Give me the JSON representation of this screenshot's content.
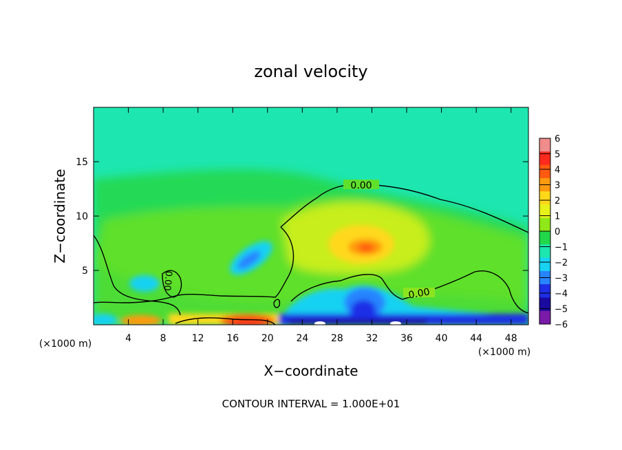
{
  "chart_data": {
    "type": "heatmap",
    "title": "zonal velocity",
    "xlabel": "X−coordinate",
    "ylabel": "Z−coordinate",
    "x_unit_left": "(×1000 m)",
    "x_unit_right": "(×1000 m)",
    "xlim": [
      0,
      50
    ],
    "ylim": [
      0,
      20
    ],
    "x_ticks": [
      4,
      8,
      12,
      16,
      20,
      24,
      28,
      32,
      36,
      40,
      44,
      48
    ],
    "x_tick_labels": [
      "4",
      "8",
      "12",
      "16",
      "20",
      "24",
      "28",
      "32",
      "36",
      "40",
      "44",
      "48"
    ],
    "y_ticks": [
      5,
      10,
      15
    ],
    "y_tick_labels": [
      "5",
      "10",
      "15"
    ],
    "footer": "CONTOUR INTERVAL = 1.000E+01",
    "contour_label": "0.00",
    "colorbar": {
      "levels": [
        6,
        5,
        4,
        3,
        2,
        1,
        0,
        -1,
        -2,
        -3,
        -4,
        -5,
        -6
      ],
      "labels": [
        "6",
        "5",
        "4",
        "3",
        "2",
        "1",
        "0",
        "−1",
        "−2",
        "−3",
        "−4",
        "−5",
        "−6"
      ],
      "colors": [
        "#f08c8c",
        "#ff2a1e",
        "#ff5a10",
        "#ff9a10",
        "#ffd81a",
        "#e6f21a",
        "#90e818",
        "#22d84a",
        "#1ee6b0",
        "#18d2f2",
        "#2884ff",
        "#1e2ee6",
        "#1a0aa0",
        "#7a1aa8"
      ]
    },
    "field_features": [
      {
        "desc": "background",
        "x": 25,
        "z": 17,
        "value": -1.6
      },
      {
        "desc": "max",
        "x": 31,
        "z": 7,
        "value": 3.2
      },
      {
        "desc": "min",
        "x": 15,
        "z": 5.5,
        "value": -2.8
      },
      {
        "desc": "min",
        "x": 32,
        "z": 2,
        "value": -3.5
      },
      {
        "desc": "surface max",
        "x": 18,
        "z": 0.4,
        "value": 4.5
      }
    ]
  }
}
